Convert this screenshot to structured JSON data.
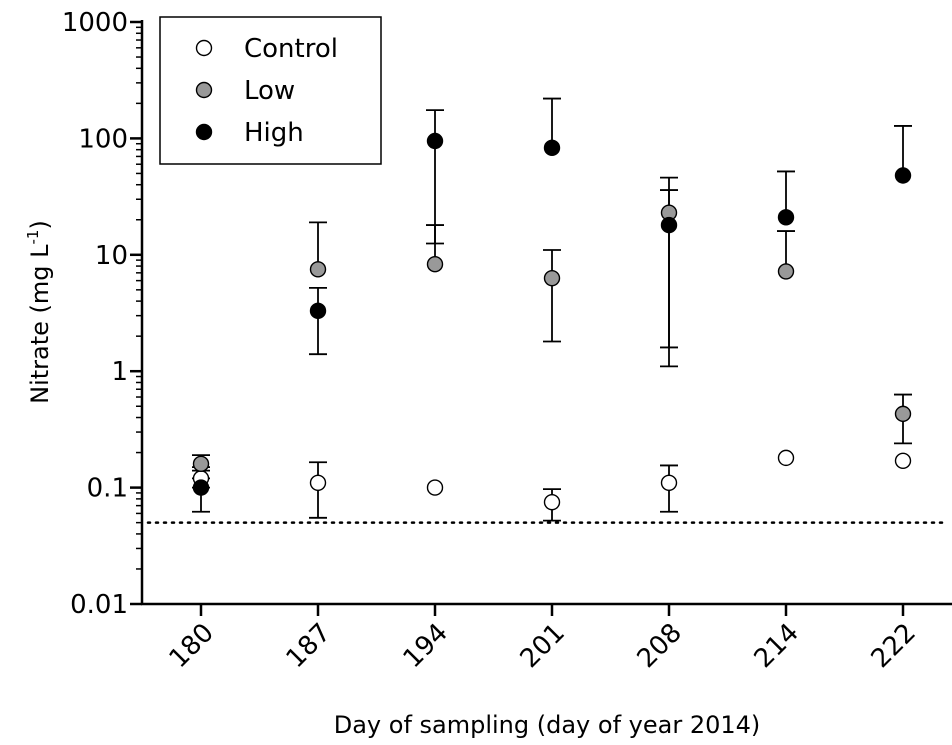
{
  "chart_data": {
    "type": "scatter",
    "title": "",
    "xlabel": "Day of sampling (day of year 2014)",
    "ylabel": "Nitrate (mg L",
    "ylabel_sup": "-1",
    "ylabel_close": ")",
    "yscale": "log",
    "ylim": [
      0.01,
      1000
    ],
    "y_ticks": [
      "0.01",
      "0.1",
      "1",
      "10",
      "100",
      "1000"
    ],
    "categories": [
      "180",
      "187",
      "194",
      "201",
      "208",
      "214",
      "222"
    ],
    "detection_limit": 0.05,
    "grid": false,
    "legend_position": "top-left",
    "series": [
      {
        "name": "Control",
        "marker": "open-circle",
        "color": "#ffffff",
        "values": [
          0.12,
          0.11,
          0.1,
          0.075,
          0.11,
          0.18,
          0.17
        ],
        "err_low": [
          0.1,
          0.055,
          null,
          0.052,
          0.062,
          null,
          null
        ],
        "err_high": [
          0.15,
          0.165,
          null,
          0.097,
          0.155,
          null,
          null
        ]
      },
      {
        "name": "Low",
        "marker": "gray-circle",
        "color": "#999999",
        "values": [
          0.16,
          7.5,
          8.3,
          6.3,
          23,
          7.2,
          0.43
        ],
        "err_low": [
          0.12,
          null,
          null,
          1.8,
          1.6,
          null,
          0.24
        ],
        "err_high": [
          0.19,
          19,
          18,
          11,
          46,
          16,
          0.63
        ]
      },
      {
        "name": "High",
        "marker": "black-circle",
        "color": "#000000",
        "values": [
          0.1,
          3.3,
          95,
          83,
          18,
          21,
          48
        ],
        "err_low": [
          0.062,
          1.4,
          12.5,
          null,
          1.1,
          null,
          null
        ],
        "err_high": [
          0.14,
          5.2,
          175,
          220,
          36,
          52,
          128
        ]
      }
    ]
  }
}
